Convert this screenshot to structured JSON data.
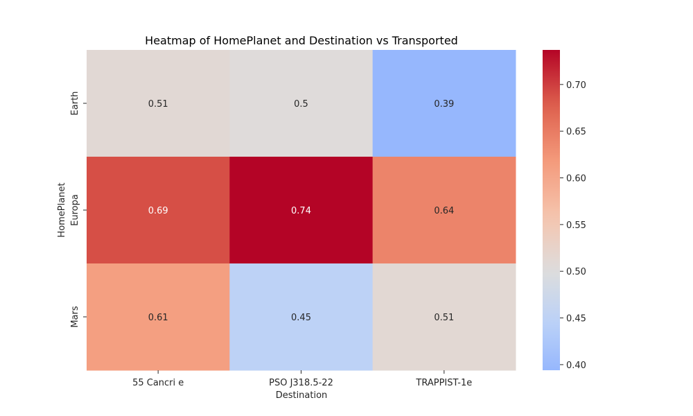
{
  "chart_data": {
    "type": "heatmap",
    "title": "Heatmap of HomePlanet and Destination vs Transported",
    "xlabel": "Destination",
    "ylabel": "HomePlanet",
    "x_categories": [
      "55 Cancri e",
      "PSO J318.5-22",
      "TRAPPIST-1e"
    ],
    "y_categories": [
      "Earth",
      "Europa",
      "Mars"
    ],
    "values": [
      [
        0.511,
        0.504,
        0.394
      ],
      [
        0.689,
        0.737,
        0.641
      ],
      [
        0.611,
        0.448,
        0.512
      ]
    ],
    "annotations": [
      [
        "0.51",
        "0.5",
        "0.39"
      ],
      [
        "0.69",
        "0.74",
        "0.64"
      ],
      [
        "0.61",
        "0.45",
        "0.51"
      ]
    ],
    "colormap": "coolwarm",
    "colorbar": {
      "range": [
        0.394,
        0.737
      ],
      "ticks": [
        0.4,
        0.45,
        0.5,
        0.55,
        0.6,
        0.65,
        0.7
      ],
      "tick_labels": [
        "0.40",
        "0.45",
        "0.50",
        "0.55",
        "0.60",
        "0.65",
        "0.70"
      ]
    },
    "grid": false,
    "legend": "colorbar-right"
  }
}
